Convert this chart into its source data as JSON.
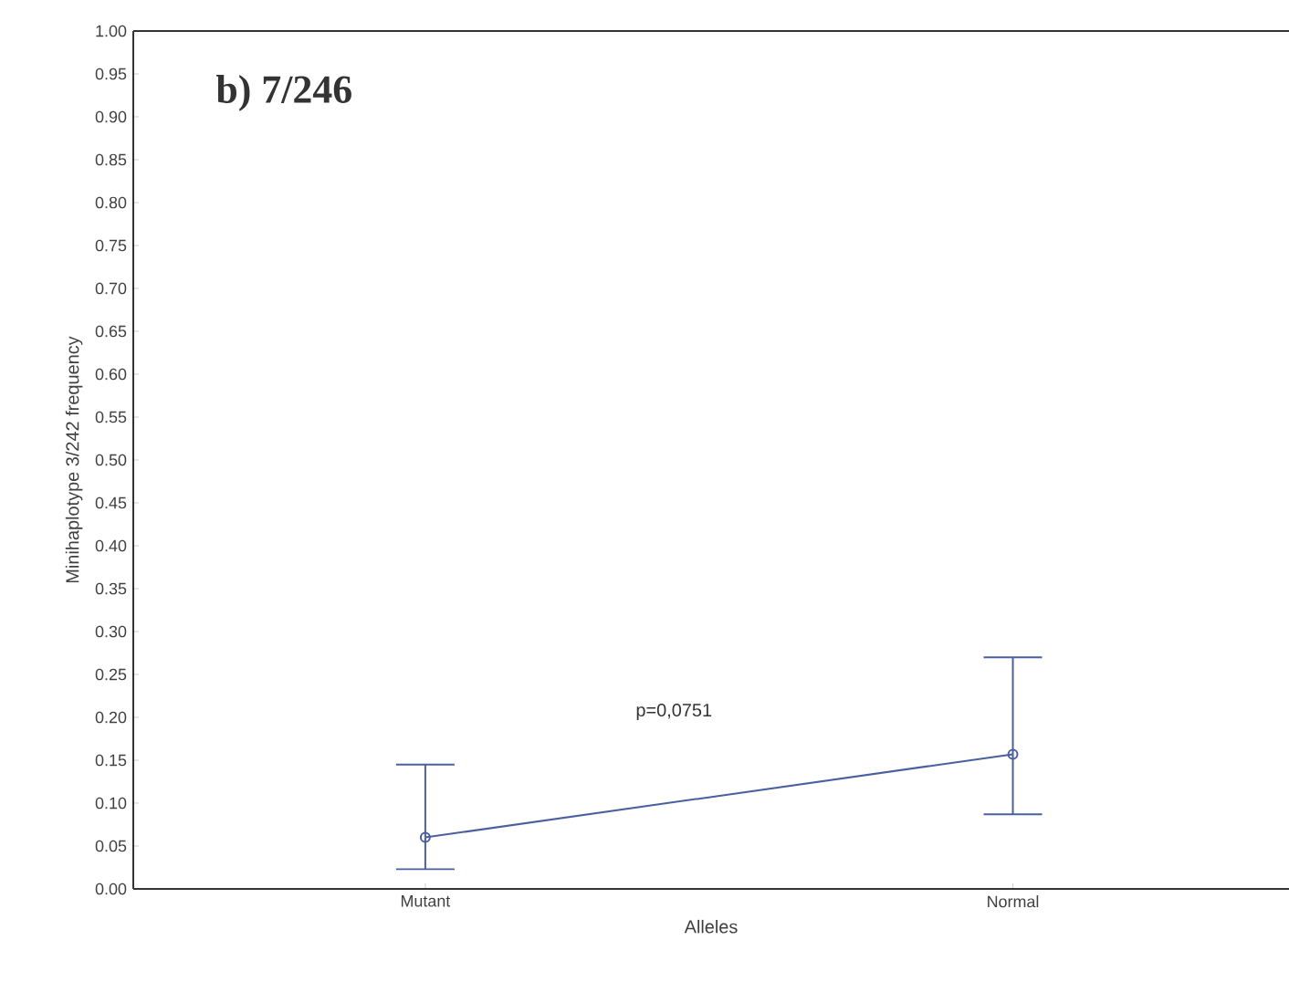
{
  "chart_data": {
    "type": "line",
    "xlabel": "Alleles",
    "ylabel": "Minihaplotype 3/242 frequency",
    "categories": [
      "Mutant",
      "Normal"
    ],
    "series": [
      {
        "color": "#4a5fa0",
        "values": [
          0.06,
          0.157
        ],
        "errors": [
          [
            0.023,
            0.145
          ],
          [
            0.087,
            0.27
          ]
        ]
      }
    ],
    "ylim": [
      0,
      1
    ],
    "yticks": [
      {
        "value": 0,
        "label": "0.00"
      },
      {
        "value": 0.05,
        "label": "0.05"
      },
      {
        "value": 0.1,
        "label": "0.10"
      },
      {
        "value": 0.15,
        "label": "0.15"
      },
      {
        "value": 0.2,
        "label": "0.20"
      },
      {
        "value": 0.25,
        "label": "0.25"
      },
      {
        "value": 0.3,
        "label": "0.30"
      },
      {
        "value": 0.35,
        "label": "0.35"
      },
      {
        "value": 0.4,
        "label": "0.40"
      },
      {
        "value": 0.45,
        "label": "0.45"
      },
      {
        "value": 0.5,
        "label": "0.50"
      },
      {
        "value": 0.55,
        "label": "0.55"
      },
      {
        "value": 0.6,
        "label": "0.60"
      },
      {
        "value": 0.65,
        "label": "0.65"
      },
      {
        "value": 0.7,
        "label": "0.70"
      },
      {
        "value": 0.75,
        "label": "0.75"
      },
      {
        "value": 0.8,
        "label": "0.80"
      },
      {
        "value": 0.85,
        "label": "0.85"
      },
      {
        "value": 0.9,
        "label": "0.90"
      },
      {
        "value": 0.95,
        "label": "0.95"
      },
      {
        "value": 1,
        "label": "1.00"
      }
    ],
    "annotations": [
      "b) 7/246",
      "p=0,0751"
    ],
    "marker": "circle",
    "line_style": "solid",
    "grid": false
  }
}
